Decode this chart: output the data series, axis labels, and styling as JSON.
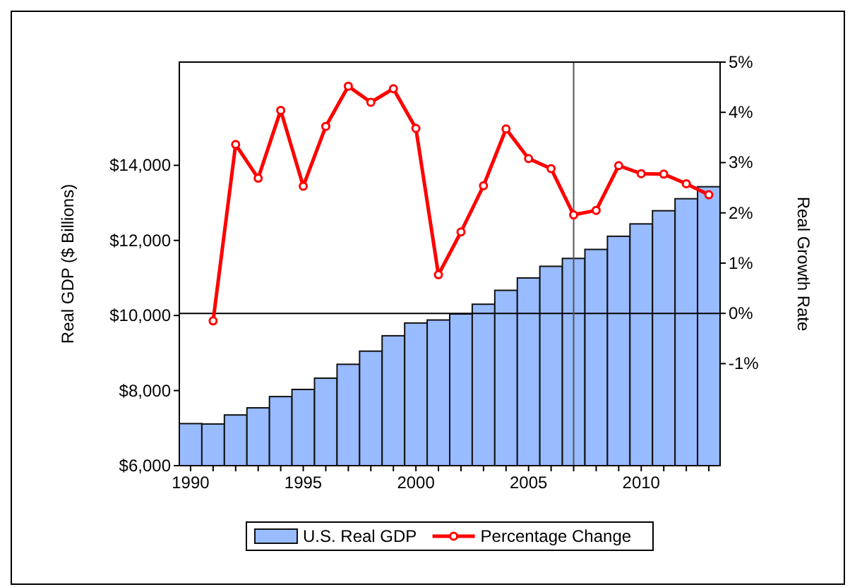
{
  "chart_data": {
    "type": "bar",
    "ylabel": "Real GDP ($ Billions)",
    "y2label": "Real Growth Rate",
    "x": [
      1990,
      1991,
      1992,
      1993,
      1994,
      1995,
      1996,
      1997,
      1998,
      1999,
      2000,
      2001,
      2002,
      2003,
      2004,
      2005,
      2006,
      2007,
      2008,
      2009,
      2010,
      2011,
      2012,
      2013
    ],
    "series": [
      {
        "name": "U.S. Real GDP",
        "color": "#99bbff",
        "values": [
          7120,
          7110,
          7350,
          7540,
          7840,
          8030,
          8330,
          8700,
          9050,
          9460,
          9800,
          9880,
          10040,
          10300,
          10670,
          11000,
          11310,
          11520,
          11760,
          12110,
          12440,
          12790,
          13110,
          13430
        ]
      },
      {
        "name": "Percentage Change",
        "type": "line",
        "axis": "y2",
        "color": "#ff0000",
        "marker": "circle",
        "x": [
          1991,
          1992,
          1993,
          1994,
          1995,
          1996,
          1997,
          1998,
          1999,
          2000,
          2001,
          2002,
          2003,
          2004,
          2005,
          2006,
          2007,
          2008,
          2009,
          2010,
          2011,
          2012,
          2013
        ],
        "values": [
          -0.15,
          3.36,
          2.69,
          4.04,
          2.53,
          3.72,
          4.52,
          4.2,
          4.47,
          3.68,
          0.77,
          1.62,
          2.54,
          3.67,
          3.08,
          2.88,
          1.96,
          2.05,
          2.94,
          2.78,
          2.77,
          2.58,
          2.36
        ]
      }
    ],
    "xlim": [
      1989.5,
      2013.5
    ],
    "xticks": [
      1990,
      {
        "value": 1991,
        "label": null
      },
      {
        "value": 1992,
        "label": null
      },
      {
        "value": 1993,
        "label": null
      },
      {
        "value": 1994,
        "label": null
      },
      1995,
      {
        "value": 1996,
        "label": null
      },
      {
        "value": 1997,
        "label": null
      },
      {
        "value": 1998,
        "label": null
      },
      {
        "value": 1999,
        "label": null
      },
      2000,
      {
        "value": 2001,
        "label": null
      },
      {
        "value": 2002,
        "label": null
      },
      {
        "value": 2003,
        "label": null
      },
      {
        "value": 2004,
        "label": null
      },
      2005,
      {
        "value": 2006,
        "label": null
      },
      {
        "value": 2007,
        "label": null
      },
      {
        "value": 2008,
        "label": null
      },
      {
        "value": 2009,
        "label": null
      },
      2010,
      {
        "value": 2011,
        "label": null
      },
      {
        "value": 2012,
        "label": null
      },
      {
        "value": 2013,
        "label": null
      }
    ],
    "ylim": [
      6000,
      16750
    ],
    "yticks": [
      {
        "value": 6000,
        "label": "$6,000"
      },
      {
        "value": 8000,
        "label": "$8,000"
      },
      {
        "value": 10000,
        "label": "$10,000"
      },
      {
        "value": 12000,
        "label": "$12,000"
      },
      {
        "value": 14000,
        "label": "$14,000"
      }
    ],
    "y2lim": [
      -3.03,
      5
    ],
    "y2ticks": [
      {
        "value": -1,
        "label": "-1%"
      },
      {
        "value": 0,
        "label": "0%"
      },
      {
        "value": 1,
        "label": "1%"
      },
      {
        "value": 2,
        "label": "2%"
      },
      {
        "value": 3,
        "label": "3%"
      },
      {
        "value": 4,
        "label": "4%"
      },
      {
        "value": 5,
        "label": "5%"
      }
    ],
    "ref_lines": [
      {
        "axis": "y2",
        "value": 0,
        "color": "#000000"
      },
      {
        "axis": "x",
        "value": 2007,
        "color": "#555555"
      }
    ],
    "grid": false,
    "legend": "bottom"
  }
}
